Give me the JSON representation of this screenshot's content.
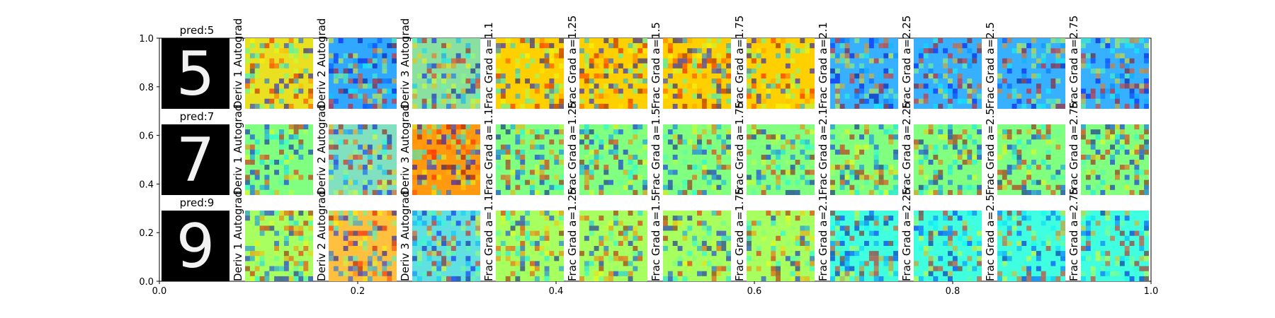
{
  "chart_data": {
    "type": "heatmap",
    "axes": {
      "xlim": [
        0.0,
        1.0
      ],
      "ylim": [
        0.0,
        1.0
      ],
      "xticks": [
        "0.0",
        "0.2",
        "0.4",
        "0.6",
        "0.8",
        "1.0"
      ],
      "yticks": [
        "0.0",
        "0.2",
        "0.4",
        "0.6",
        "0.8",
        "1.0"
      ],
      "grid": false
    },
    "colormap": "jet",
    "digit_titles": [
      "pred:5",
      "pred:7",
      "pred:9"
    ],
    "digits": [
      "5",
      "7",
      "9"
    ],
    "column_labels": [
      "Deriv 1 Autograd",
      "Deriv 2 Autograd",
      "Deriv 3 Autograd",
      "Frac Grad a=1.1",
      "Frac Grad a=1.25",
      "Frac Grad a=1.5",
      "Frac Grad a=1.75",
      "Frac Grad a=2.1",
      "Frac Grad a=2.25",
      "Frac Grad a=2.5",
      "Frac Grad a=2.75"
    ],
    "row_panel_background": [
      [
        "#e8e020",
        "#30a8ff",
        "#8ae0a0",
        "#ffd000",
        "#ffd000",
        "#ffd000",
        "#ffd000",
        "#36b0ff",
        "#36b0ff",
        "#36b0ff",
        "#36b0ff"
      ],
      [
        "#80ff80",
        "#80e0c0",
        "#ff9a10",
        "#80ff80",
        "#80ff80",
        "#80ff80",
        "#80ff80",
        "#80ff80",
        "#80ff80",
        "#80ff80",
        "#80ff80"
      ],
      [
        "#a8ff60",
        "#ffc040",
        "#60e0e0",
        "#a8ff60",
        "#a8ff60",
        "#a8ff60",
        "#a8ff60",
        "#40ffe0",
        "#40ffe0",
        "#40ffe0",
        "#40ffe0"
      ]
    ]
  }
}
